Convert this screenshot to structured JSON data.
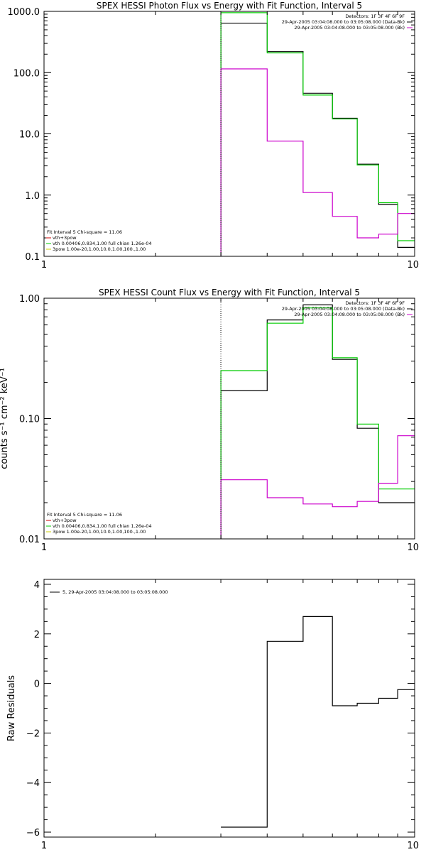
{
  "chart_data": [
    {
      "type": "line",
      "title": "SPEX HESSI Photon Flux vs Energy with Fit Function, Interval 5",
      "xscale": "log",
      "yscale": "log",
      "xlim": [
        1,
        10
      ],
      "ylim": [
        0.1,
        1000
      ],
      "xticks": [
        {
          "v": 1,
          "label": "1"
        },
        {
          "v": 10,
          "label": "10"
        }
      ],
      "yticks": [
        {
          "v": 0.1,
          "label": "0.1"
        },
        {
          "v": 1,
          "label": "1.0"
        },
        {
          "v": 10,
          "label": "10.0"
        },
        {
          "v": 100,
          "label": "100.0"
        },
        {
          "v": 1000,
          "label": "1000.0"
        }
      ],
      "vline": {
        "x": 3,
        "style": "dotted"
      },
      "ylabel": "",
      "info_lines": [
        "Detectors: 1F 3F 4F 6F 9F",
        "29-Apr-2005 03:04:08.000 to 03:05:08.000 (Data-Bk)",
        "29-Apr-2005 03:04:08.000 to 03:05:08.000 (Bk)"
      ],
      "info_colors": [
        "",
        "#000000",
        "#cc00cc"
      ],
      "legend_lines": [
        "Fit Interval  5     Chi-square = 11.06",
        "vth+3pow",
        "vth 0.00406,0.834,1.00   full chian 1.26e-04",
        "3pow 1.00e-20,1.00,10.0,1.00,100.,1.00"
      ],
      "legend_colors": [
        "",
        "#cc0000",
        "#00cc00",
        "#cccc00"
      ],
      "edges": [
        3,
        3.5,
        4,
        4.5,
        5,
        5.5,
        6,
        6.5,
        7,
        7.5,
        8,
        8.5,
        9,
        9.5,
        10
      ],
      "series": [
        {
          "color": "#000000",
          "values": [
            640,
            640,
            220,
            220,
            46,
            46,
            18,
            18,
            3.2,
            3.2,
            0.7,
            0.7,
            0.14,
            0.14
          ]
        },
        {
          "color": "#00cc00",
          "values": [
            950,
            950,
            210,
            210,
            43,
            43,
            17.5,
            17.5,
            3.1,
            3.1,
            0.75,
            0.75,
            0.18,
            0.18
          ]
        },
        {
          "color": "#cc00cc",
          "values": [
            115,
            115,
            7.6,
            7.6,
            1.1,
            1.1,
            0.45,
            0.45,
            0.2,
            0.2,
            0.23,
            0.23,
            0.5,
            0.5
          ]
        }
      ]
    },
    {
      "type": "line",
      "title": "SPEX HESSI Count Flux vs Energy with Fit Function, Interval 5",
      "xscale": "log",
      "yscale": "log",
      "xlim": [
        1,
        10
      ],
      "ylim": [
        0.01,
        1
      ],
      "xticks": [
        {
          "v": 1,
          "label": "1"
        },
        {
          "v": 10,
          "label": "10"
        }
      ],
      "yticks": [
        {
          "v": 0.01,
          "label": "0.01"
        },
        {
          "v": 0.1,
          "label": "0.10"
        },
        {
          "v": 1,
          "label": "1.00"
        }
      ],
      "vline": {
        "x": 3,
        "style": "dotted"
      },
      "ylabel": "counts s⁻¹ cm⁻² keV⁻¹",
      "info_lines": [
        "Detectors: 1F 3F 4F 6F 9F",
        "29-Apr-2005 03:04:08.000 to 03:05:08.000 (Data-Bk)",
        "29-Apr-2005 03:04:08.000 to 03:05:08.000 (Bk)"
      ],
      "info_colors": [
        "",
        "#000000",
        "#cc00cc"
      ],
      "legend_lines": [
        "Fit Interval  5     Chi-square = 11.06",
        "vth+3pow",
        "vth 0.00406,0.834,1.00   full chian 1.26e-04",
        "3pow 1.00e-20,1.00,10.0,1.00,100.,1.00"
      ],
      "legend_colors": [
        "",
        "#cc0000",
        "#00cc00",
        "#cccc00"
      ],
      "edges": [
        3,
        3.5,
        4,
        4.5,
        5,
        5.5,
        6,
        6.5,
        7,
        7.5,
        8,
        8.5,
        9,
        9.5,
        10
      ],
      "series": [
        {
          "color": "#000000",
          "values": [
            0.17,
            0.17,
            0.66,
            0.66,
            0.88,
            0.88,
            0.31,
            0.31,
            0.083,
            0.083,
            0.02,
            0.02,
            0.02,
            0.02
          ]
        },
        {
          "color": "#00cc00",
          "values": [
            0.25,
            0.25,
            0.62,
            0.62,
            0.83,
            0.83,
            0.32,
            0.32,
            0.09,
            0.09,
            0.026,
            0.026,
            0.026,
            0.026
          ]
        },
        {
          "color": "#cc00cc",
          "values": [
            0.031,
            0.031,
            0.022,
            0.022,
            0.0195,
            0.0195,
            0.0185,
            0.0185,
            0.0205,
            0.0205,
            0.029,
            0.029,
            0.072,
            0.072
          ]
        }
      ]
    },
    {
      "type": "line",
      "title": "",
      "xscale": "log",
      "yscale": "linear",
      "xlim": [
        1,
        10
      ],
      "ylim": [
        -6.2,
        4.2
      ],
      "xticks": [
        {
          "v": 1,
          "label": "1"
        },
        {
          "v": 10,
          "label": "10"
        }
      ],
      "yticks": [
        {
          "v": -6,
          "label": "−6"
        },
        {
          "v": -4,
          "label": "−4"
        },
        {
          "v": -2,
          "label": "−2"
        },
        {
          "v": 0,
          "label": "0"
        },
        {
          "v": 2,
          "label": "2"
        },
        {
          "v": 4,
          "label": "4"
        }
      ],
      "ylabel": "Raw Residuals",
      "legend_item": "5, 29-Apr-2005 03:04:08.000 to 03:05:08.000",
      "edges": [
        3,
        3.5,
        4,
        4.5,
        5,
        5.5,
        6,
        6.5,
        7,
        7.5,
        8,
        8.5,
        9,
        9.5,
        10
      ],
      "series": [
        {
          "color": "#000000",
          "values": [
            -5.8,
            -5.8,
            1.7,
            1.7,
            2.7,
            2.7,
            -0.9,
            -0.9,
            -0.8,
            -0.8,
            -0.6,
            -0.6,
            -0.25,
            -0.25
          ]
        }
      ]
    }
  ]
}
